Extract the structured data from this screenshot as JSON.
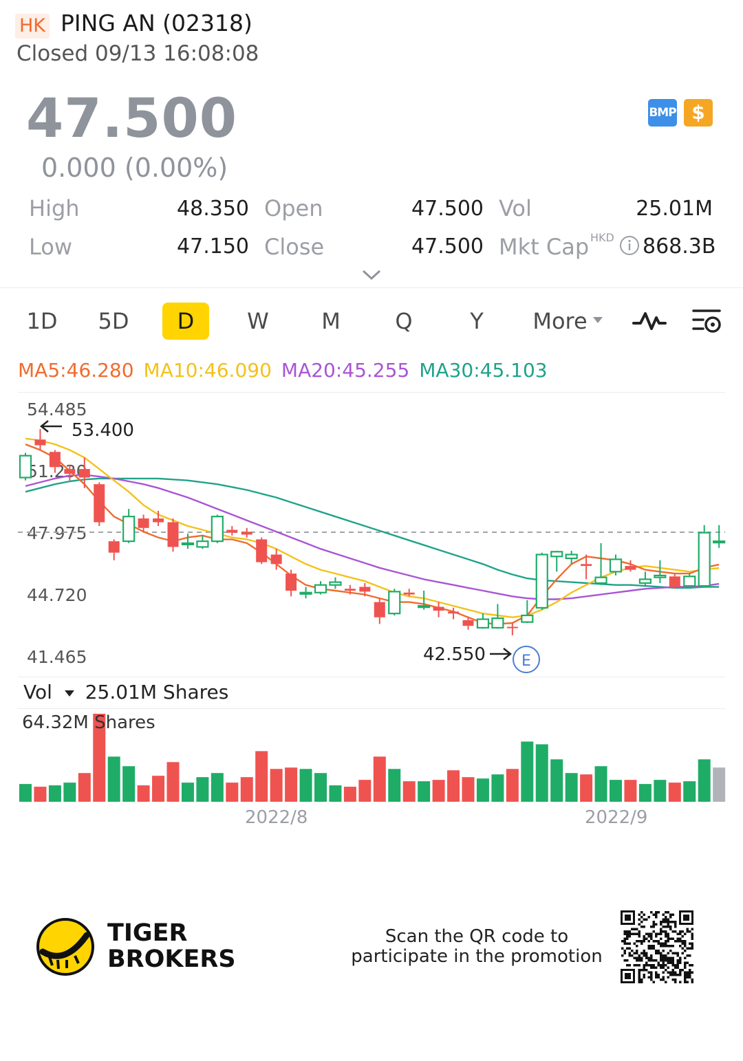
{
  "header": {
    "market_badge": "HK",
    "stock_name": "PING AN (02318)",
    "status": "Closed 09/13 16:08:08"
  },
  "quote": {
    "price": "47.500",
    "change": "0.000 (0.00%)",
    "badges": {
      "bmp": "BMP",
      "dollar": "$"
    },
    "high_label": "High",
    "high": "48.350",
    "low_label": "Low",
    "low": "47.150",
    "open_label": "Open",
    "open": "47.500",
    "close_label": "Close",
    "close": "47.500",
    "vol_label": "Vol",
    "vol": "25.01M",
    "mktcap_label": "Mkt Cap",
    "mktcap_currency": "HKD",
    "mktcap": "868.3B"
  },
  "tabs": {
    "items": [
      "1D",
      "5D",
      "D",
      "W",
      "M",
      "Q",
      "Y"
    ],
    "active": "D",
    "more": "More",
    "icons": [
      "indicator-icon",
      "chart-settings-icon"
    ]
  },
  "ma": {
    "ma5": "MA5:46.280",
    "ma10": "MA10:46.090",
    "ma20": "MA20:45.255",
    "ma30": "MA30:45.103",
    "colors": {
      "ma5": "#ef6c2e",
      "ma10": "#f2c21b",
      "ma20": "#a855d4",
      "ma30": "#1fa38a"
    }
  },
  "colors": {
    "up": "#1fac67",
    "down": "#ef5350",
    "flat": "#b0b3b8",
    "accent": "#ffd400"
  },
  "chart_data": {
    "type": "candlestick",
    "y_ticks": [
      "54.485",
      "51.230",
      "47.975",
      "44.720",
      "41.465"
    ],
    "ylim": [
      41.465,
      54.485
    ],
    "max_label": "53.400",
    "min_label": "42.550",
    "event_marker": "E",
    "last_price_line": 47.975,
    "x_labels": [
      "2022/8",
      "2022/9"
    ],
    "candles": [
      [
        50.85,
        52.0,
        52.15,
        50.7
      ],
      [
        52.85,
        52.55,
        53.4,
        52.3
      ],
      [
        52.2,
        51.4,
        52.3,
        51.1
      ],
      [
        51.3,
        51.05,
        51.5,
        50.7
      ],
      [
        51.3,
        50.85,
        51.9,
        50.3
      ],
      [
        50.5,
        48.5,
        50.6,
        48.3
      ],
      [
        47.5,
        46.9,
        47.6,
        46.5
      ],
      [
        47.5,
        48.8,
        49.2,
        47.4
      ],
      [
        48.7,
        48.2,
        48.9,
        48.0
      ],
      [
        48.7,
        48.5,
        49.1,
        48.3
      ],
      [
        48.5,
        47.2,
        48.7,
        46.95
      ],
      [
        47.35,
        47.4,
        47.9,
        47.1
      ],
      [
        47.2,
        47.5,
        47.8,
        47.1
      ],
      [
        47.5,
        48.8,
        48.9,
        47.4
      ],
      [
        48.1,
        47.95,
        48.3,
        47.8
      ],
      [
        48.0,
        47.85,
        48.2,
        47.7
      ],
      [
        47.6,
        46.4,
        47.7,
        46.3
      ],
      [
        46.8,
        46.3,
        47.1,
        46.0
      ],
      [
        45.8,
        44.9,
        46.0,
        44.6
      ],
      [
        44.8,
        44.8,
        45.1,
        44.5
      ],
      [
        44.8,
        45.2,
        45.4,
        44.7
      ],
      [
        45.2,
        45.35,
        45.6,
        45.0
      ],
      [
        45.0,
        44.9,
        45.2,
        44.7
      ],
      [
        45.1,
        44.85,
        45.3,
        44.6
      ],
      [
        44.3,
        43.5,
        44.5,
        43.15
      ],
      [
        43.7,
        44.85,
        45.0,
        43.6
      ],
      [
        44.8,
        44.7,
        45.0,
        44.6
      ],
      [
        44.1,
        44.1,
        44.9,
        43.9
      ],
      [
        44.05,
        43.85,
        44.3,
        43.5
      ],
      [
        43.8,
        43.7,
        44.0,
        43.4
      ],
      [
        43.35,
        43.05,
        43.5,
        42.85
      ],
      [
        42.95,
        43.4,
        43.7,
        42.9
      ],
      [
        42.95,
        43.45,
        44.2,
        42.9
      ],
      [
        43.0,
        42.95,
        43.2,
        42.55
      ],
      [
        43.25,
        43.6,
        44.4,
        43.2
      ],
      [
        44.0,
        46.8,
        46.9,
        43.9
      ],
      [
        46.7,
        46.95,
        47.0,
        45.9
      ],
      [
        46.6,
        46.8,
        47.0,
        46.3
      ],
      [
        46.3,
        46.2,
        46.8,
        45.5
      ],
      [
        45.3,
        45.6,
        47.4,
        45.2
      ],
      [
        45.9,
        46.55,
        46.8,
        45.7
      ],
      [
        46.2,
        46.0,
        46.5,
        45.9
      ],
      [
        45.3,
        45.5,
        45.9,
        45.1
      ],
      [
        45.6,
        45.7,
        46.5,
        45.3
      ],
      [
        45.65,
        45.1,
        45.8,
        45.0
      ],
      [
        45.15,
        45.65,
        45.8,
        45.1
      ],
      [
        45.15,
        47.95,
        48.35,
        45.1
      ],
      [
        47.5,
        47.5,
        48.35,
        47.15
      ]
    ],
    "ma5": [
      52.6,
      52.3,
      51.9,
      51.2,
      50.5,
      49.6,
      48.8,
      48.4,
      48.0,
      47.7,
      47.5,
      47.7,
      47.8,
      47.6,
      47.6,
      47.4,
      46.9,
      46.3,
      45.7,
      45.2,
      45.0,
      44.9,
      44.8,
      44.7,
      44.5,
      44.3,
      44.3,
      44.2,
      44.0,
      43.8,
      43.5,
      43.2,
      43.15,
      43.2,
      43.6,
      44.6,
      45.5,
      46.3,
      46.7,
      46.6,
      46.5,
      46.3,
      46.0,
      45.9,
      45.8,
      45.8,
      46.1,
      46.28
    ],
    "ma10": [
      52.9,
      52.8,
      52.6,
      52.3,
      51.9,
      51.3,
      50.7,
      50.1,
      49.4,
      48.9,
      48.6,
      48.3,
      48.1,
      47.9,
      47.7,
      47.6,
      47.4,
      47.1,
      46.7,
      46.3,
      46.0,
      45.8,
      45.6,
      45.4,
      45.1,
      44.8,
      44.6,
      44.5,
      44.3,
      44.1,
      43.9,
      43.7,
      43.6,
      43.5,
      43.6,
      43.9,
      44.3,
      44.8,
      45.2,
      45.6,
      45.9,
      46.1,
      46.2,
      46.1,
      46.0,
      45.9,
      46.0,
      46.09
    ],
    "ma20": [
      50.4,
      50.6,
      50.8,
      50.95,
      51.0,
      50.9,
      50.8,
      50.65,
      50.5,
      50.3,
      50.05,
      49.8,
      49.5,
      49.2,
      48.9,
      48.6,
      48.3,
      48.0,
      47.7,
      47.4,
      47.1,
      46.85,
      46.6,
      46.35,
      46.1,
      45.9,
      45.7,
      45.5,
      45.35,
      45.2,
      45.05,
      44.9,
      44.75,
      44.6,
      44.5,
      44.45,
      44.45,
      44.5,
      44.6,
      44.7,
      44.8,
      44.9,
      45.0,
      45.05,
      45.1,
      45.1,
      45.15,
      45.26
    ],
    "ma30": [
      50.1,
      50.3,
      50.5,
      50.65,
      50.75,
      50.8,
      50.8,
      50.8,
      50.8,
      50.8,
      50.75,
      50.7,
      50.6,
      50.5,
      50.35,
      50.2,
      50.0,
      49.8,
      49.55,
      49.3,
      49.05,
      48.8,
      48.55,
      48.3,
      48.05,
      47.8,
      47.55,
      47.3,
      47.05,
      46.8,
      46.55,
      46.3,
      46.0,
      45.75,
      45.55,
      45.45,
      45.4,
      45.35,
      45.3,
      45.25,
      45.2,
      45.2,
      45.15,
      45.1,
      45.05,
      45.05,
      45.1,
      45.1
    ],
    "volume": {
      "header_label": "Vol",
      "header_value": "25.01M Shares",
      "max_label": "64.32M Shares",
      "max": 64.32,
      "values": [
        13.0,
        11.0,
        12.0,
        14.0,
        21.0,
        64.32,
        33.0,
        26.0,
        12.0,
        19.0,
        29.0,
        14.0,
        18.0,
        21.0,
        14.0,
        18.0,
        37.0,
        24.0,
        25.0,
        24.0,
        21.0,
        12.0,
        11.0,
        16.0,
        33.0,
        24.0,
        15.0,
        15.0,
        16.0,
        23.0,
        18.0,
        17.0,
        20.0,
        24.0,
        44.0,
        42.0,
        31.0,
        21.0,
        20.0,
        26.0,
        16.0,
        16.0,
        13.0,
        16.0,
        14.0,
        15.0,
        31.0,
        25.01
      ],
      "colors": [
        "up",
        "down",
        "up",
        "up",
        "down",
        "down",
        "up",
        "up",
        "down",
        "down",
        "down",
        "up",
        "up",
        "up",
        "down",
        "down",
        "down",
        "down",
        "down",
        "up",
        "up",
        "up",
        "down",
        "down",
        "down",
        "up",
        "down",
        "up",
        "down",
        "down",
        "down",
        "up",
        "up",
        "down",
        "up",
        "up",
        "up",
        "up",
        "down",
        "up",
        "up",
        "down",
        "up",
        "up",
        "down",
        "up",
        "up",
        "flat"
      ]
    }
  },
  "footer": {
    "brand_line1": "TIGER",
    "brand_line2": "BROKERS",
    "promo": "Scan the QR code to participate in the promotion"
  }
}
